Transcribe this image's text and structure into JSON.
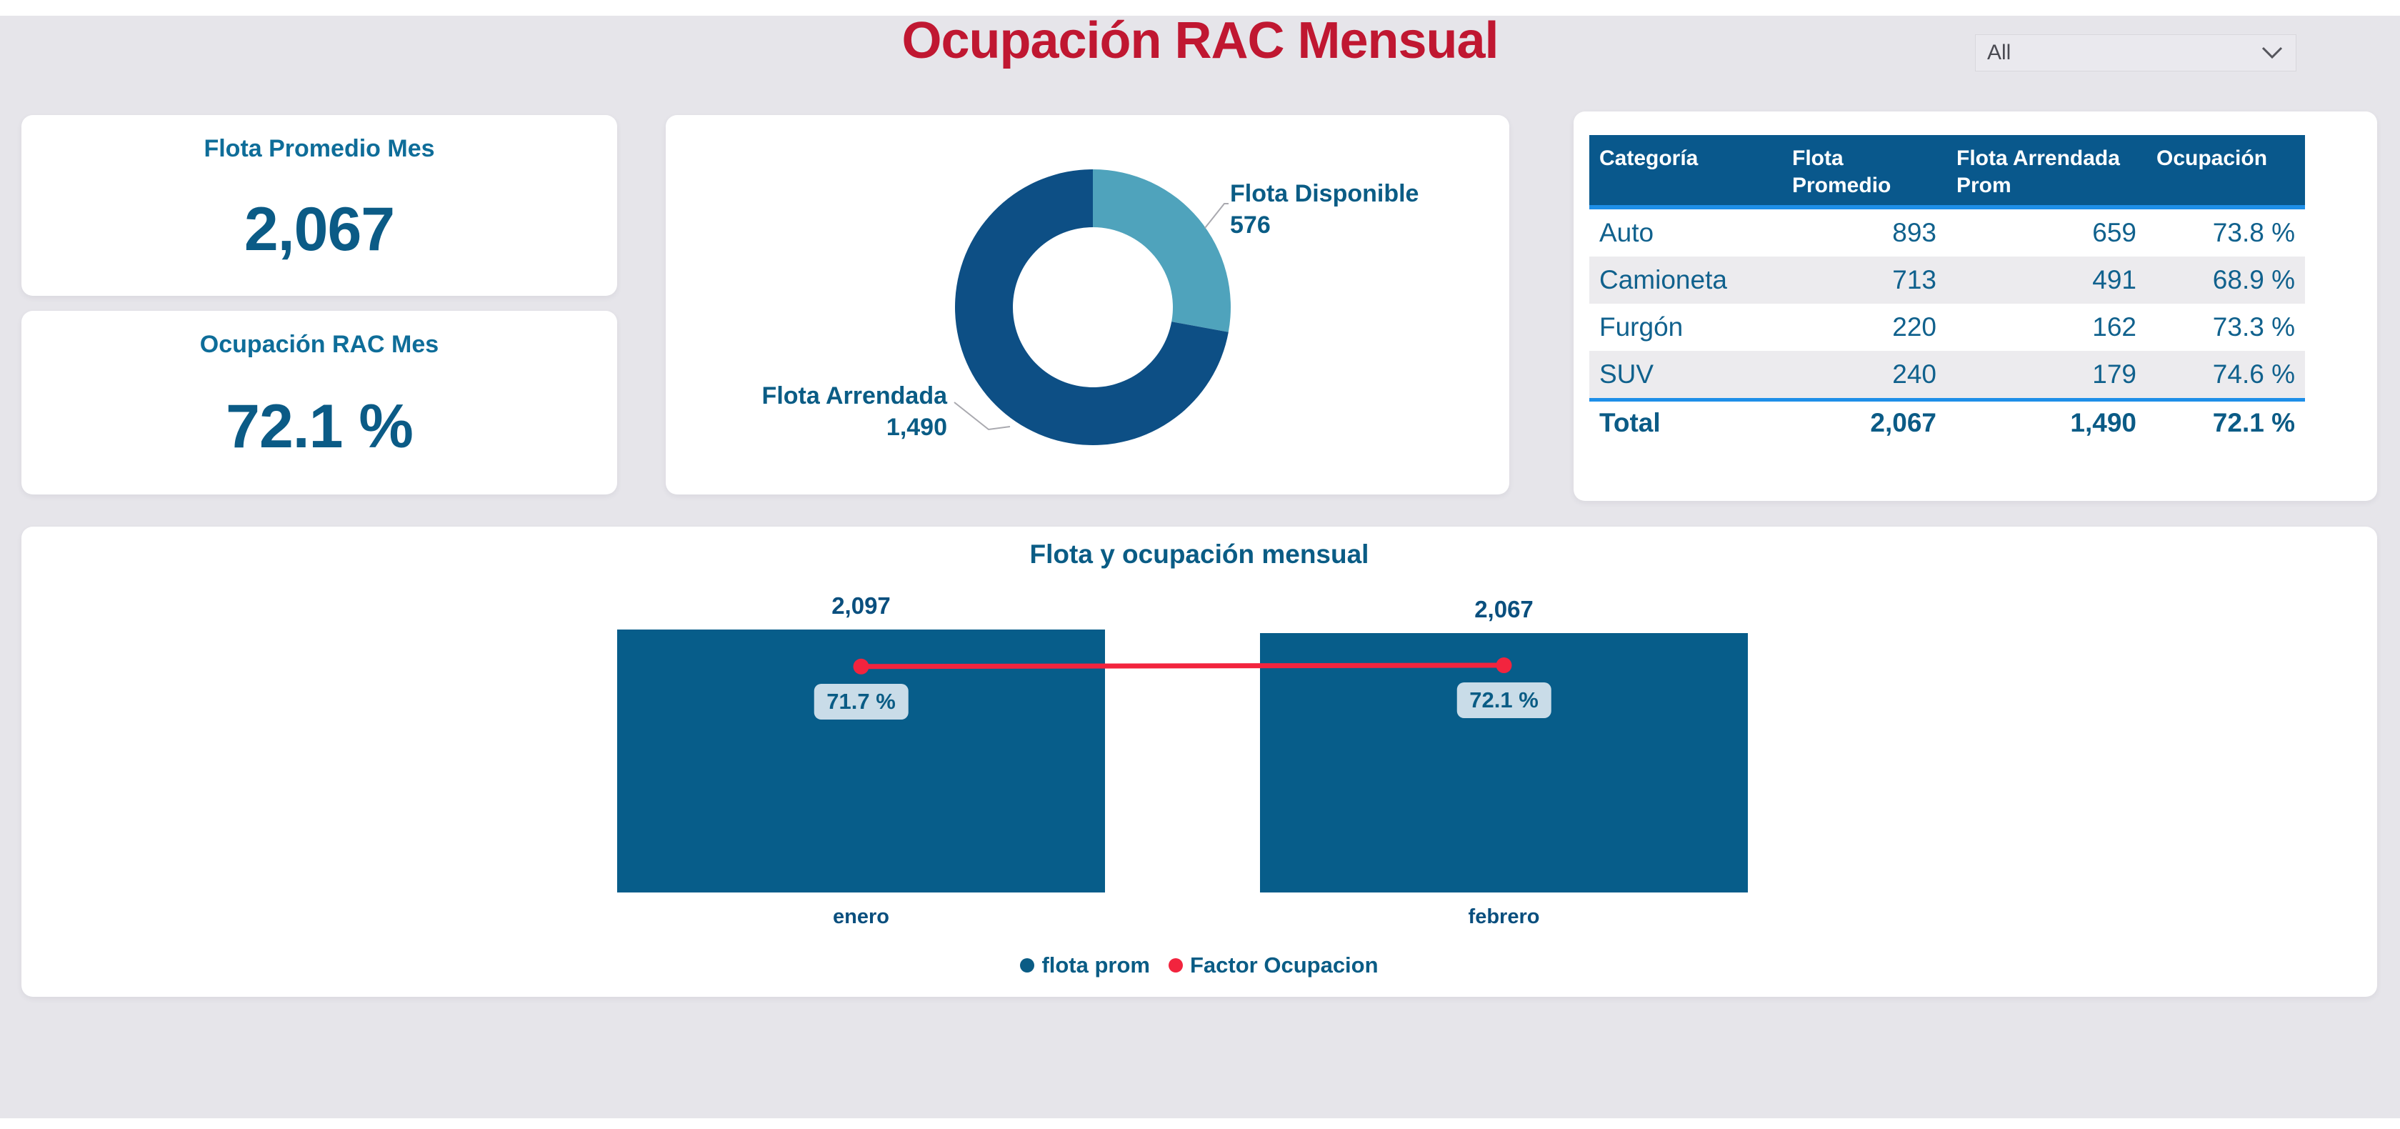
{
  "header": {
    "title": "Ocupación RAC Mensual"
  },
  "filter": {
    "value": "All"
  },
  "kpi_cards": [
    {
      "title": "Flota Promedio Mes",
      "value": "2,067"
    },
    {
      "title": "Ocupación RAC Mes",
      "value": "72.1 %"
    }
  ],
  "colors": {
    "title_red": "#c01731",
    "line_red": "#f2243e",
    "bar_teal": "#075d8a",
    "donut_dark": "#0d4f85",
    "donut_light": "#4fa3bc",
    "table_header_bg": "#09588c",
    "divider_blue": "#1e8fe8",
    "label_box_bg": "#c9dce8",
    "row_alt_gray": "#ecebee",
    "text_blue": "#0a5c85",
    "page_bg": "#e6e5ea"
  },
  "chart_data": [
    {
      "type": "pie",
      "subtype": "donut",
      "labels": [
        "Flota Arrendada",
        "Flota Disponible"
      ],
      "values": [
        1490,
        576
      ],
      "display_values": [
        "1,490",
        "576"
      ],
      "colors": [
        "#0d4f85",
        "#4fa3bc"
      ],
      "legend_position": "none"
    },
    {
      "type": "bar",
      "title": "Flota y ocupación mensual",
      "categories": [
        "enero",
        "febrero"
      ],
      "series": [
        {
          "name": "flota prom",
          "type": "bar",
          "color": "#075d8a",
          "values": [
            2097,
            2067
          ],
          "display_values": [
            "2,097",
            "2,067"
          ]
        },
        {
          "name": "Factor Ocupacion",
          "type": "line",
          "color": "#f2243e",
          "values": [
            71.7,
            72.1
          ],
          "display_values": [
            "71.7 %",
            "72.1 %"
          ]
        }
      ],
      "ylim_primary": [
        0,
        2510
      ],
      "ylim_secondary": [
        0,
        100
      ],
      "grid": false,
      "legend_position": "bottom"
    },
    {
      "type": "table",
      "columns": [
        "Categoría",
        "Flota Promedio",
        "Flota Arrendada Prom",
        "Ocupación"
      ],
      "rows": [
        [
          "Auto",
          "893",
          "659",
          "73.8 %"
        ],
        [
          "Camioneta",
          "713",
          "491",
          "68.9 %"
        ],
        [
          "Furgón",
          "220",
          "162",
          "73.3 %"
        ],
        [
          "SUV",
          "240",
          "179",
          "74.6 %"
        ]
      ],
      "total_row": [
        "Total",
        "2,067",
        "1,490",
        "72.1 %"
      ]
    }
  ]
}
